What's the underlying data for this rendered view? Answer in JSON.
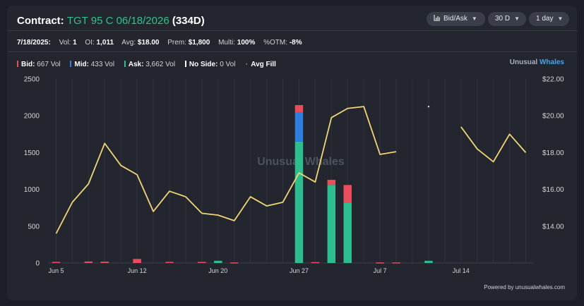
{
  "header": {
    "prefix": "Contract:",
    "contract": "TGT 95 C 06/18/2026",
    "dte": "(334D)"
  },
  "controls": [
    {
      "label": "Bid/Ask",
      "icon": "bar-chart-icon"
    },
    {
      "label": "30 D"
    },
    {
      "label": "1 day"
    }
  ],
  "stats": {
    "date": "7/18/2025:",
    "vol_label": "Vol:",
    "vol": "1",
    "oi_label": "OI:",
    "oi": "1,011",
    "avg_label": "Avg:",
    "avg": "$18.00",
    "prem_label": "Prem:",
    "prem": "$1,800",
    "multi_label": "Multi:",
    "multi": "100%",
    "otm_label": "%OTM:",
    "otm": "-8%"
  },
  "legend": {
    "bid": {
      "label": "Bid:",
      "value": "667 Vol",
      "color": "#e94c5a"
    },
    "mid": {
      "label": "Mid:",
      "value": "433 Vol",
      "color": "#2f7fe0"
    },
    "ask": {
      "label": "Ask:",
      "value": "3,662 Vol",
      "color": "#2ebd8e"
    },
    "noside": {
      "label": "No Side:",
      "value": "0 Vol",
      "color": "#ffffff"
    },
    "avgfill": {
      "label": "Avg Fill",
      "color": "#f2d675"
    }
  },
  "brand": {
    "part1": "Unusual",
    "part2": "Whales"
  },
  "watermark": "Unusual Whales",
  "footer": "Powered by unusualwhales.com",
  "chart_data": {
    "type": "bar",
    "stacked": true,
    "y_left": {
      "min": 0,
      "max": 2500,
      "ticks": [
        "0",
        "500",
        "1000",
        "1500",
        "2000",
        "2500"
      ],
      "tick_values": [
        0,
        500,
        1000,
        1500,
        2000,
        2500
      ]
    },
    "y_right": {
      "min": 12,
      "max": 22,
      "ticks": [
        "$14.00",
        "$16.00",
        "$18.00",
        "$20.00",
        "$22.00"
      ],
      "tick_values": [
        14,
        16,
        18,
        20,
        22
      ]
    },
    "x_ticks": [
      {
        "label": "Jun 5",
        "day": 0
      },
      {
        "label": "Jun 12",
        "day": 5
      },
      {
        "label": "Jun 20",
        "day": 10
      },
      {
        "label": "Jun 27",
        "day": 15
      },
      {
        "label": "Jul 7",
        "day": 20
      },
      {
        "label": "Jul 14",
        "day": 25
      }
    ],
    "n_days": 30,
    "grid": true,
    "bars": [
      {
        "day": 0,
        "bid": 15,
        "mid": 0,
        "ask": 0
      },
      {
        "day": 2,
        "bid": 20,
        "mid": 0,
        "ask": 0
      },
      {
        "day": 3,
        "bid": 18,
        "mid": 0,
        "ask": 0
      },
      {
        "day": 5,
        "bid": 55,
        "mid": 0,
        "ask": 0
      },
      {
        "day": 7,
        "bid": 15,
        "mid": 0,
        "ask": 0
      },
      {
        "day": 9,
        "bid": 15,
        "mid": 0,
        "ask": 0
      },
      {
        "day": 10,
        "bid": 0,
        "mid": 0,
        "ask": 30
      },
      {
        "day": 11,
        "bid": 8,
        "mid": 0,
        "ask": 0
      },
      {
        "day": 15,
        "bid": 95,
        "mid": 400,
        "ask": 1650
      },
      {
        "day": 16,
        "bid": 12,
        "mid": 0,
        "ask": 0
      },
      {
        "day": 17,
        "bid": 70,
        "mid": 0,
        "ask": 1060
      },
      {
        "day": 18,
        "bid": 240,
        "mid": 0,
        "ask": 820
      },
      {
        "day": 20,
        "bid": 8,
        "mid": 0,
        "ask": 0
      },
      {
        "day": 21,
        "bid": 8,
        "mid": 0,
        "ask": 0
      },
      {
        "day": 23,
        "bid": 0,
        "mid": 0,
        "ask": 30
      }
    ],
    "avg_fill_segments": [
      [
        [
          0,
          13.6
        ],
        [
          1,
          15.3
        ],
        [
          2,
          16.3
        ],
        [
          3,
          18.5
        ],
        [
          4,
          17.3
        ],
        [
          5,
          16.8
        ],
        [
          6,
          14.8
        ],
        [
          7,
          15.9
        ],
        [
          8,
          15.6
        ],
        [
          9,
          14.7
        ],
        [
          10,
          14.6
        ],
        [
          11,
          14.3
        ],
        [
          12,
          15.6
        ],
        [
          13,
          15.1
        ],
        [
          14,
          15.3
        ],
        [
          15,
          16.9
        ],
        [
          16,
          16.4
        ],
        [
          17,
          19.9
        ],
        [
          18,
          20.4
        ],
        [
          19,
          20.5
        ],
        [
          20,
          17.9
        ],
        [
          21,
          18.05
        ]
      ],
      [
        [
          25,
          19.4
        ],
        [
          26,
          18.2
        ],
        [
          27,
          17.5
        ],
        [
          28,
          19.0
        ],
        [
          29,
          18.0
        ]
      ]
    ],
    "avg_fill_points": [
      [
        23,
        20.5
      ]
    ]
  }
}
